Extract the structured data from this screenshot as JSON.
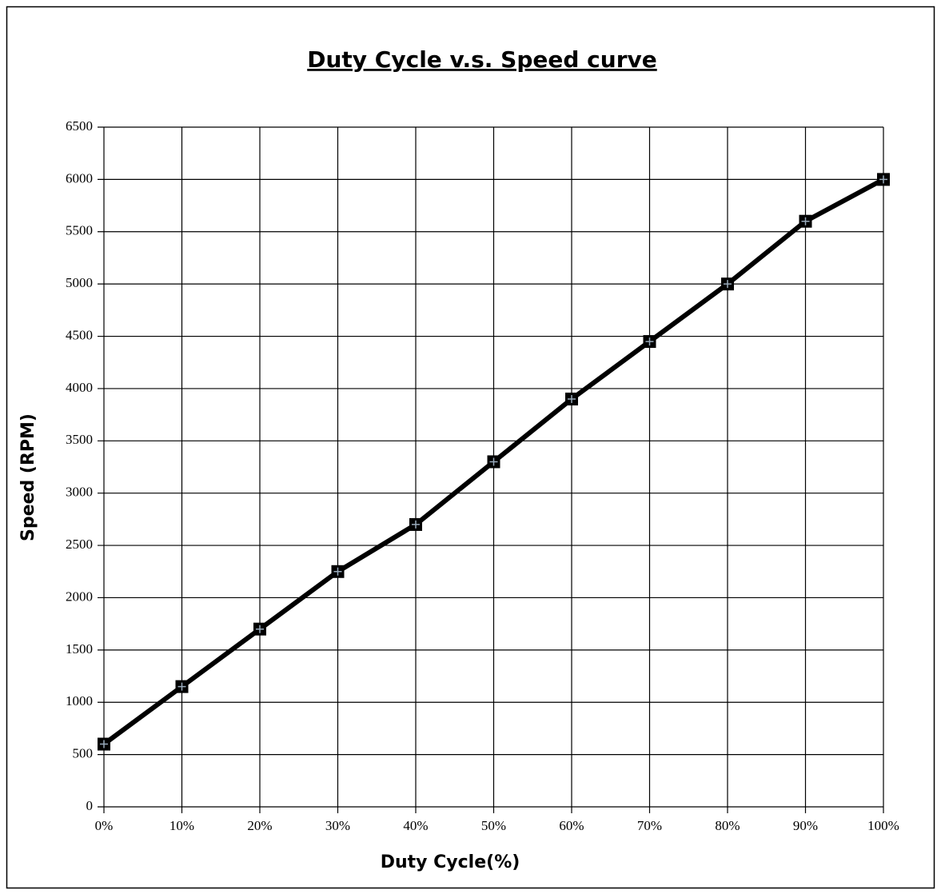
{
  "chart_data": {
    "type": "line",
    "title": "Duty  Cycle v.s. Speed curve",
    "x_label": "Duty Cycle(%)",
    "y_label": "Speed (RPM)",
    "x": [
      0,
      10,
      20,
      30,
      40,
      50,
      60,
      70,
      80,
      90,
      100
    ],
    "series": [
      {
        "name": "Speed",
        "color": "#000000",
        "values": [
          600,
          1150,
          1700,
          2250,
          2700,
          3300,
          3900,
          4450,
          5000,
          5600,
          6000
        ]
      }
    ],
    "xlim": [
      0,
      100
    ],
    "xticks": [
      {
        "value": 0,
        "label": "0%"
      },
      {
        "value": 10,
        "label": "10%"
      },
      {
        "value": 20,
        "label": "20%"
      },
      {
        "value": 30,
        "label": "30%"
      },
      {
        "value": 40,
        "label": "40%"
      },
      {
        "value": 50,
        "label": "50%"
      },
      {
        "value": 60,
        "label": "60%"
      },
      {
        "value": 70,
        "label": "70%"
      },
      {
        "value": 80,
        "label": "80%"
      },
      {
        "value": 90,
        "label": "90%"
      },
      {
        "value": 100,
        "label": "100%"
      }
    ],
    "ylim": [
      0,
      6500
    ],
    "yticks": [
      0,
      500,
      1000,
      1500,
      2000,
      2500,
      3000,
      3500,
      4000,
      4500,
      5000,
      5500,
      6000,
      6500
    ],
    "grid": true
  }
}
